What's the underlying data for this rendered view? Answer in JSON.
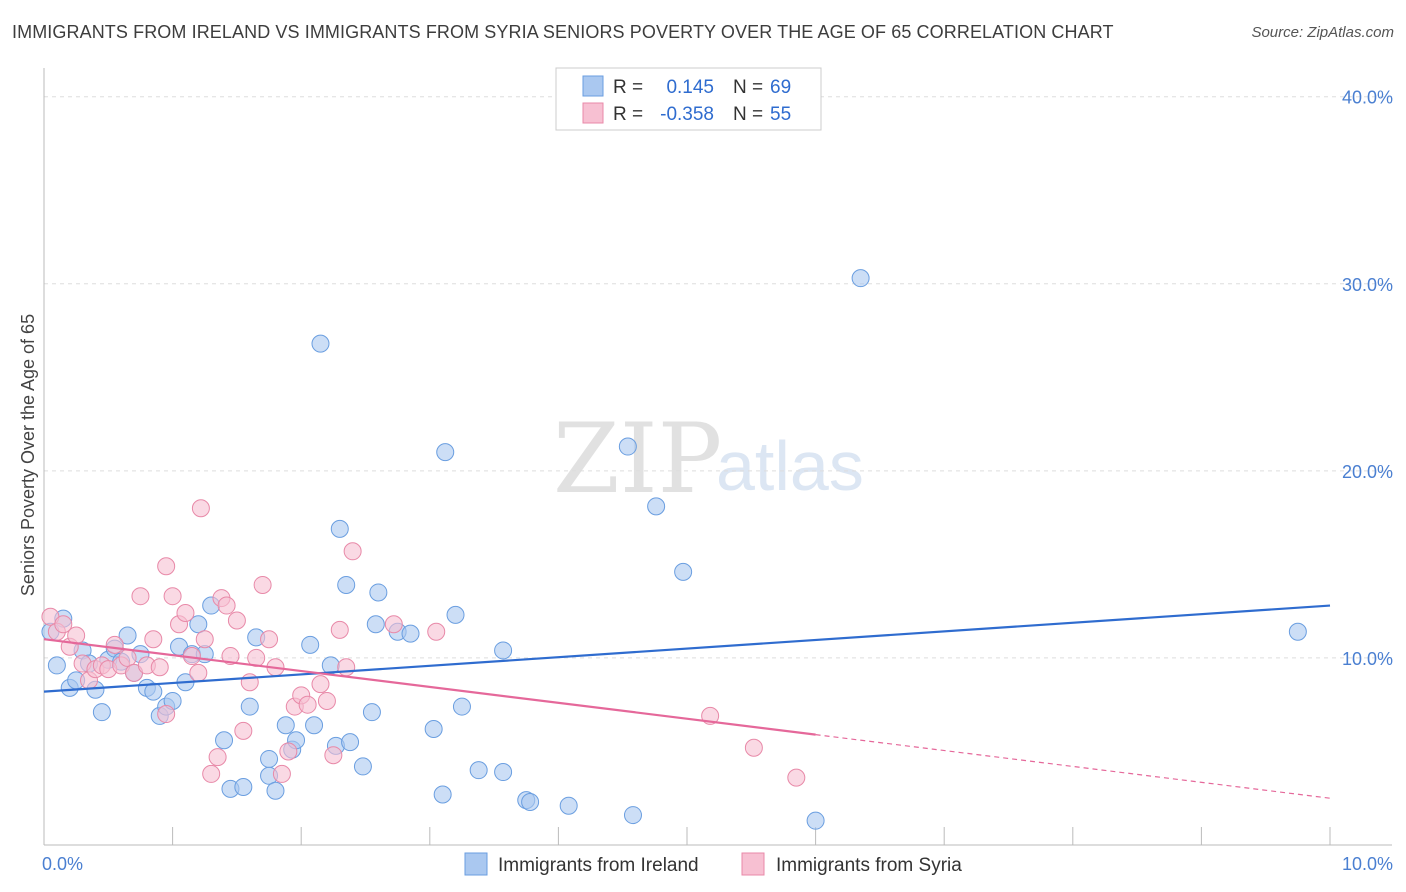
{
  "title": "IMMIGRANTS FROM IRELAND VS IMMIGRANTS FROM SYRIA SENIORS POVERTY OVER THE AGE OF 65 CORRELATION CHART",
  "source": "Source: ZipAtlas.com",
  "watermark": {
    "zip": "ZIP",
    "atlas": "atlas"
  },
  "legend": {
    "rows": [
      {
        "r_label": "R =",
        "r_value": "0.145",
        "n_label": "N =",
        "n_value": "69",
        "color": "#aac8f0",
        "stroke": "#6a9ee0"
      },
      {
        "r_label": "R =",
        "r_value": "-0.358",
        "n_label": "N =",
        "n_value": "55",
        "color": "#f7c0d2",
        "stroke": "#e889a8"
      }
    ]
  },
  "bottom_legend": [
    {
      "label": "Immigrants from Ireland",
      "color": "#aac8f0",
      "stroke": "#6a9ee0"
    },
    {
      "label": "Immigrants from Syria",
      "color": "#f7c0d2",
      "stroke": "#e889a8"
    }
  ],
  "chart_data": {
    "type": "scatter",
    "title": "IMMIGRANTS FROM IRELAND VS IMMIGRANTS FROM SYRIA SENIORS POVERTY OVER THE AGE OF 65 CORRELATION CHART",
    "xlabel": "",
    "ylabel": "Seniors Poverty Over the Age of 65",
    "xlim": [
      0,
      10
    ],
    "ylim": [
      0,
      41
    ],
    "x_tick_labels": [
      "0.0%",
      "10.0%"
    ],
    "y_ticks": [
      10,
      20,
      30,
      40
    ],
    "y_tick_labels": [
      "10.0%",
      "20.0%",
      "30.0%",
      "40.0%"
    ],
    "grid": true,
    "legend_position": "top-center",
    "series": [
      {
        "name": "Immigrants from Ireland",
        "color": "#6a9ee0",
        "fill": "#aac8f0",
        "trend": {
          "x": [
            0,
            10
          ],
          "y": [
            8.2,
            12.8
          ],
          "color": "#2f6ccf"
        },
        "points": [
          {
            "x": 0.05,
            "y": 11.4
          },
          {
            "x": 0.1,
            "y": 9.6
          },
          {
            "x": 0.15,
            "y": 12.1
          },
          {
            "x": 0.2,
            "y": 8.4
          },
          {
            "x": 0.25,
            "y": 8.8
          },
          {
            "x": 0.3,
            "y": 10.4
          },
          {
            "x": 0.35,
            "y": 9.7
          },
          {
            "x": 0.4,
            "y": 8.3
          },
          {
            "x": 0.45,
            "y": 7.1
          },
          {
            "x": 0.5,
            "y": 9.9
          },
          {
            "x": 0.55,
            "y": 10.5
          },
          {
            "x": 0.6,
            "y": 9.8
          },
          {
            "x": 0.65,
            "y": 11.2
          },
          {
            "x": 0.7,
            "y": 9.2
          },
          {
            "x": 0.75,
            "y": 10.2
          },
          {
            "x": 0.8,
            "y": 8.4
          },
          {
            "x": 0.85,
            "y": 8.2
          },
          {
            "x": 0.9,
            "y": 6.9
          },
          {
            "x": 0.95,
            "y": 7.4
          },
          {
            "x": 1.0,
            "y": 7.7
          },
          {
            "x": 1.05,
            "y": 10.6
          },
          {
            "x": 1.1,
            "y": 8.7
          },
          {
            "x": 1.15,
            "y": 10.2
          },
          {
            "x": 1.2,
            "y": 11.8
          },
          {
            "x": 1.25,
            "y": 10.2
          },
          {
            "x": 1.3,
            "y": 12.8
          },
          {
            "x": 1.4,
            "y": 5.6
          },
          {
            "x": 1.45,
            "y": 3.0
          },
          {
            "x": 1.55,
            "y": 3.1
          },
          {
            "x": 1.6,
            "y": 7.4
          },
          {
            "x": 1.65,
            "y": 11.1
          },
          {
            "x": 1.75,
            "y": 4.6
          },
          {
            "x": 1.75,
            "y": 3.7
          },
          {
            "x": 1.8,
            "y": 2.9
          },
          {
            "x": 1.88,
            "y": 6.4
          },
          {
            "x": 1.93,
            "y": 5.1
          },
          {
            "x": 1.96,
            "y": 5.6
          },
          {
            "x": 2.07,
            "y": 10.7
          },
          {
            "x": 2.1,
            "y": 6.4
          },
          {
            "x": 2.15,
            "y": 26.8
          },
          {
            "x": 2.23,
            "y": 9.6
          },
          {
            "x": 2.27,
            "y": 5.3
          },
          {
            "x": 2.3,
            "y": 16.9
          },
          {
            "x": 2.35,
            "y": 13.9
          },
          {
            "x": 2.38,
            "y": 5.5
          },
          {
            "x": 2.48,
            "y": 4.2
          },
          {
            "x": 2.55,
            "y": 7.1
          },
          {
            "x": 2.58,
            "y": 11.8
          },
          {
            "x": 2.6,
            "y": 13.5
          },
          {
            "x": 2.75,
            "y": 11.4
          },
          {
            "x": 2.85,
            "y": 11.3
          },
          {
            "x": 3.03,
            "y": 6.2
          },
          {
            "x": 3.1,
            "y": 2.7
          },
          {
            "x": 3.12,
            "y": 21.0
          },
          {
            "x": 3.2,
            "y": 12.3
          },
          {
            "x": 3.25,
            "y": 7.4
          },
          {
            "x": 3.38,
            "y": 4.0
          },
          {
            "x": 3.57,
            "y": 10.4
          },
          {
            "x": 3.57,
            "y": 3.9
          },
          {
            "x": 3.75,
            "y": 2.4
          },
          {
            "x": 3.78,
            "y": 2.3
          },
          {
            "x": 4.08,
            "y": 2.1
          },
          {
            "x": 4.54,
            "y": 21.3
          },
          {
            "x": 4.58,
            "y": 1.6
          },
          {
            "x": 4.76,
            "y": 18.1
          },
          {
            "x": 4.97,
            "y": 14.6
          },
          {
            "x": 6.0,
            "y": 1.3
          },
          {
            "x": 6.35,
            "y": 30.3
          },
          {
            "x": 9.75,
            "y": 11.4
          }
        ]
      },
      {
        "name": "Immigrants from Syria",
        "color": "#e889a8",
        "fill": "#f7c0d2",
        "trend": {
          "x": [
            0,
            6.0
          ],
          "y": [
            11.0,
            5.9
          ],
          "color": "#e5689a"
        },
        "trend_extension": {
          "x": [
            6.0,
            10
          ],
          "y": [
            5.9,
            2.5
          ]
        },
        "points": [
          {
            "x": 0.05,
            "y": 12.2
          },
          {
            "x": 0.1,
            "y": 11.4
          },
          {
            "x": 0.15,
            "y": 11.8
          },
          {
            "x": 0.2,
            "y": 10.6
          },
          {
            "x": 0.25,
            "y": 11.2
          },
          {
            "x": 0.3,
            "y": 9.7
          },
          {
            "x": 0.35,
            "y": 8.8
          },
          {
            "x": 0.4,
            "y": 9.4
          },
          {
            "x": 0.45,
            "y": 9.6
          },
          {
            "x": 0.5,
            "y": 9.4
          },
          {
            "x": 0.55,
            "y": 10.7
          },
          {
            "x": 0.6,
            "y": 9.6
          },
          {
            "x": 0.65,
            "y": 10.0
          },
          {
            "x": 0.7,
            "y": 9.2
          },
          {
            "x": 0.75,
            "y": 13.3
          },
          {
            "x": 0.8,
            "y": 9.6
          },
          {
            "x": 0.85,
            "y": 11.0
          },
          {
            "x": 0.9,
            "y": 9.5
          },
          {
            "x": 0.95,
            "y": 7.0
          },
          {
            "x": 0.95,
            "y": 14.9
          },
          {
            "x": 1.0,
            "y": 13.3
          },
          {
            "x": 1.05,
            "y": 11.8
          },
          {
            "x": 1.1,
            "y": 12.4
          },
          {
            "x": 1.15,
            "y": 10.1
          },
          {
            "x": 1.2,
            "y": 9.2
          },
          {
            "x": 1.22,
            "y": 18.0
          },
          {
            "x": 1.25,
            "y": 11.0
          },
          {
            "x": 1.3,
            "y": 3.8
          },
          {
            "x": 1.35,
            "y": 4.7
          },
          {
            "x": 1.38,
            "y": 13.2
          },
          {
            "x": 1.42,
            "y": 12.8
          },
          {
            "x": 1.45,
            "y": 10.1
          },
          {
            "x": 1.5,
            "y": 12.0
          },
          {
            "x": 1.55,
            "y": 6.1
          },
          {
            "x": 1.6,
            "y": 8.7
          },
          {
            "x": 1.65,
            "y": 10.0
          },
          {
            "x": 1.7,
            "y": 13.9
          },
          {
            "x": 1.75,
            "y": 11.0
          },
          {
            "x": 1.8,
            "y": 9.5
          },
          {
            "x": 1.85,
            "y": 3.8
          },
          {
            "x": 1.9,
            "y": 5.0
          },
          {
            "x": 1.95,
            "y": 7.4
          },
          {
            "x": 2.0,
            "y": 8.0
          },
          {
            "x": 2.05,
            "y": 7.5
          },
          {
            "x": 2.15,
            "y": 8.6
          },
          {
            "x": 2.2,
            "y": 7.7
          },
          {
            "x": 2.25,
            "y": 4.8
          },
          {
            "x": 2.3,
            "y": 11.5
          },
          {
            "x": 2.35,
            "y": 9.5
          },
          {
            "x": 2.4,
            "y": 15.7
          },
          {
            "x": 2.72,
            "y": 11.8
          },
          {
            "x": 3.05,
            "y": 11.4
          },
          {
            "x": 5.18,
            "y": 6.9
          },
          {
            "x": 5.52,
            "y": 5.2
          },
          {
            "x": 5.85,
            "y": 3.6
          }
        ]
      }
    ]
  }
}
